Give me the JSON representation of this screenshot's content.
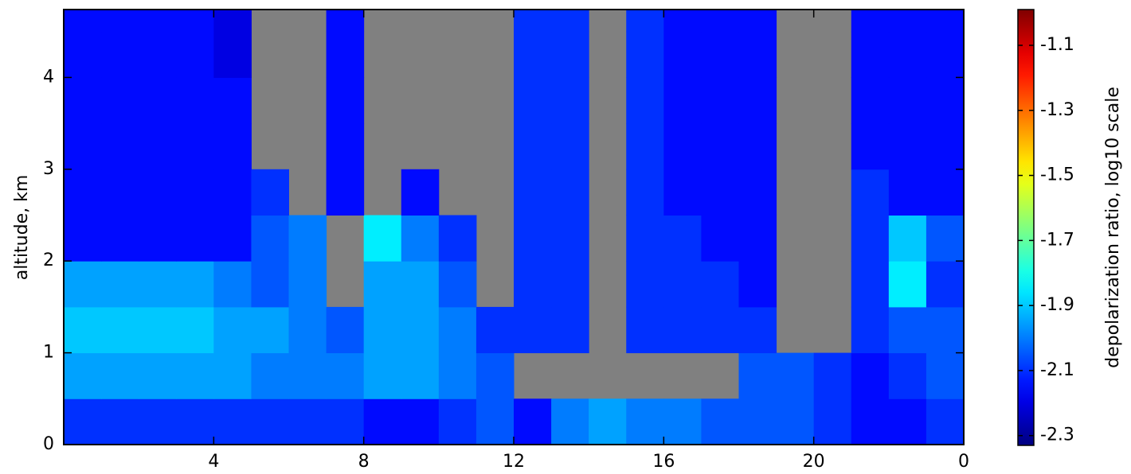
{
  "chart_data": {
    "type": "heatmap",
    "ylabel": "altitude, km",
    "colorbar_label": "depolarization ratio, log10 scale",
    "colormap": "jet",
    "missing_color": "#808080",
    "xlim": [
      0,
      24
    ],
    "xticks": [
      4,
      8,
      12,
      16,
      20,
      {
        "value": 24,
        "label": "0"
      }
    ],
    "ylim": [
      0,
      4.74
    ],
    "yticks": [
      0,
      1,
      2,
      3,
      4
    ],
    "clim": [
      -2.33,
      -0.99
    ],
    "cticks": [
      -2.3,
      -2.1,
      -1.9,
      -1.7,
      -1.5,
      -1.3,
      -1.1
    ],
    "xbins": [
      0,
      1,
      2,
      3,
      4,
      5,
      6,
      7,
      8,
      9,
      10,
      11,
      12,
      13,
      14,
      15,
      16,
      17,
      18,
      19,
      20,
      21,
      22,
      23,
      24
    ],
    "ybins": [
      0,
      0.5,
      1,
      1.5,
      2,
      2.5,
      3,
      3.5,
      4,
      4.5,
      4.74
    ],
    "values": [
      [
        -2.1,
        -2.1,
        -2.1,
        -2.1,
        -2.1,
        -2.1,
        -2.1,
        -2.1,
        -2.15,
        -2.15,
        -2.1,
        -2.05,
        -2.15,
        -2.0,
        -1.95,
        -2.0,
        -2.0,
        -2.05,
        -2.05,
        -2.05,
        -2.1,
        -2.15,
        -2.15,
        -2.1
      ],
      [
        -1.95,
        -1.95,
        -1.95,
        -1.95,
        -1.95,
        -2.0,
        -2.0,
        -2.0,
        -1.95,
        -1.95,
        -2.0,
        -2.05,
        null,
        null,
        null,
        null,
        null,
        null,
        -2.05,
        -2.05,
        -2.1,
        -2.15,
        -2.1,
        -2.05
      ],
      [
        -1.9,
        -1.9,
        -1.9,
        -1.9,
        -1.95,
        -1.95,
        -2.0,
        -2.05,
        -1.95,
        -1.95,
        -2.0,
        -2.1,
        -2.1,
        -2.1,
        null,
        -2.1,
        -2.1,
        -2.1,
        -2.1,
        null,
        null,
        -2.1,
        -2.05,
        -2.05
      ],
      [
        -1.95,
        -1.95,
        -1.95,
        -1.95,
        -2.0,
        -2.05,
        -2.0,
        null,
        -1.95,
        -1.95,
        -2.05,
        null,
        -2.1,
        -2.1,
        null,
        -2.1,
        -2.1,
        -2.1,
        -2.15,
        null,
        null,
        -2.1,
        -1.85,
        -2.1
      ],
      [
        -2.15,
        -2.15,
        -2.15,
        -2.15,
        -2.15,
        -2.05,
        -2.0,
        null,
        -1.85,
        -2.0,
        -2.1,
        null,
        -2.1,
        -2.1,
        null,
        -2.1,
        -2.1,
        -2.15,
        -2.15,
        null,
        null,
        -2.1,
        -1.9,
        -2.05
      ],
      [
        -2.15,
        -2.15,
        -2.15,
        -2.15,
        -2.15,
        -2.1,
        null,
        -2.15,
        null,
        -2.15,
        null,
        null,
        -2.1,
        -2.1,
        null,
        -2.1,
        -2.15,
        -2.15,
        -2.15,
        null,
        null,
        -2.1,
        -2.15,
        -2.15
      ],
      [
        -2.15,
        -2.15,
        -2.15,
        -2.15,
        -2.15,
        null,
        null,
        -2.15,
        null,
        null,
        null,
        null,
        -2.1,
        -2.1,
        null,
        -2.1,
        -2.15,
        -2.15,
        -2.15,
        null,
        null,
        -2.15,
        -2.15,
        -2.15
      ],
      [
        -2.15,
        -2.15,
        -2.15,
        -2.15,
        -2.15,
        null,
        null,
        -2.15,
        null,
        null,
        null,
        null,
        -2.1,
        -2.1,
        null,
        -2.1,
        -2.15,
        -2.15,
        -2.15,
        null,
        null,
        -2.15,
        -2.15,
        -2.15
      ],
      [
        -2.15,
        -2.15,
        -2.15,
        -2.15,
        -2.2,
        null,
        null,
        -2.15,
        null,
        null,
        null,
        null,
        -2.1,
        -2.1,
        null,
        -2.1,
        -2.15,
        -2.15,
        -2.15,
        null,
        null,
        -2.15,
        -2.15,
        -2.15
      ],
      [
        -2.15,
        -2.15,
        -2.15,
        -2.15,
        -2.2,
        null,
        null,
        -2.15,
        null,
        null,
        null,
        null,
        -2.1,
        -2.1,
        null,
        -2.1,
        -2.15,
        -2.15,
        -2.15,
        null,
        null,
        -2.15,
        -2.15,
        -2.15
      ]
    ]
  }
}
